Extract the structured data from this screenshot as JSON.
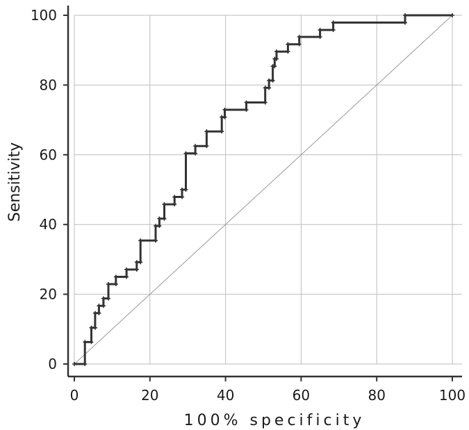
{
  "chart_data": {
    "type": "line",
    "title": "",
    "xlabel": "100% specificity",
    "ylabel": "Sensitivity",
    "xlim": [
      0,
      100
    ],
    "ylim": [
      0,
      100
    ],
    "x_ticks": [
      "0",
      "20",
      "40",
      "60",
      "80",
      "100"
    ],
    "y_ticks": [
      "0",
      "20",
      "40",
      "60",
      "80",
      "100"
    ],
    "grid": true,
    "colors": {
      "curve": "#333333",
      "reference": "#999999",
      "grid": "#bdbdbd",
      "axis": "#333333"
    },
    "series": [
      {
        "style": "step",
        "points": [
          [
            0,
            0
          ],
          [
            2.8,
            0
          ],
          [
            2.8,
            6.3
          ],
          [
            4.5,
            6.3
          ],
          [
            4.5,
            10.4
          ],
          [
            5.5,
            10.4
          ],
          [
            5.5,
            14.6
          ],
          [
            6.5,
            14.6
          ],
          [
            6.5,
            16.7
          ],
          [
            7.7,
            16.7
          ],
          [
            7.7,
            18.8
          ],
          [
            9,
            18.8
          ],
          [
            9,
            22.9
          ],
          [
            11,
            22.9
          ],
          [
            11,
            25
          ],
          [
            13.8,
            25
          ],
          [
            13.8,
            27.1
          ],
          [
            16.5,
            27.1
          ],
          [
            16.5,
            29.2
          ],
          [
            17.5,
            29.2
          ],
          [
            17.5,
            35.4
          ],
          [
            21.5,
            35.4
          ],
          [
            21.5,
            39.6
          ],
          [
            22.5,
            39.6
          ],
          [
            22.5,
            41.7
          ],
          [
            23.8,
            41.7
          ],
          [
            23.8,
            45.8
          ],
          [
            26.5,
            45.8
          ],
          [
            26.5,
            47.9
          ],
          [
            28.5,
            47.9
          ],
          [
            28.5,
            50
          ],
          [
            29.5,
            50
          ],
          [
            29.5,
            60.4
          ],
          [
            32,
            60.4
          ],
          [
            32,
            62.5
          ],
          [
            35,
            62.5
          ],
          [
            35,
            66.7
          ],
          [
            39,
            66.7
          ],
          [
            39,
            70.8
          ],
          [
            39.8,
            70.8
          ],
          [
            39.8,
            72.9
          ],
          [
            45.5,
            72.9
          ],
          [
            45.5,
            75
          ],
          [
            50.5,
            75
          ],
          [
            50.5,
            79.2
          ],
          [
            51.5,
            79.2
          ],
          [
            51.5,
            81.3
          ],
          [
            52.5,
            81.3
          ],
          [
            52.5,
            85.4
          ],
          [
            53,
            85.4
          ],
          [
            53,
            87.5
          ],
          [
            53.5,
            87.5
          ],
          [
            53.5,
            89.6
          ],
          [
            56.5,
            89.6
          ],
          [
            56.5,
            91.7
          ],
          [
            59.5,
            91.7
          ],
          [
            59.5,
            93.8
          ],
          [
            65,
            93.8
          ],
          [
            65,
            95.8
          ],
          [
            68.5,
            95.8
          ],
          [
            68.5,
            97.9
          ],
          [
            87.5,
            97.9
          ],
          [
            87.5,
            100
          ],
          [
            100,
            100
          ]
        ]
      },
      {
        "style": "reference",
        "points": [
          [
            0,
            0
          ],
          [
            100,
            100
          ]
        ]
      }
    ]
  }
}
